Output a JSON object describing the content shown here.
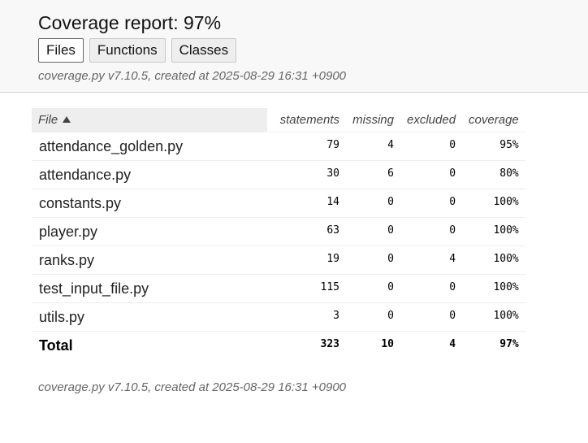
{
  "header": {
    "title": "Coverage report: 97%",
    "tabs": [
      {
        "label": "Files",
        "current": true
      },
      {
        "label": "Functions",
        "current": false
      },
      {
        "label": "Classes",
        "current": false
      }
    ],
    "meta": "coverage.py v7.10.5, created at 2025-08-29 16:31 +0900"
  },
  "table": {
    "columns": {
      "file": "File",
      "statements": "statements",
      "missing": "missing",
      "excluded": "excluded",
      "coverage": "coverage"
    },
    "rows": [
      {
        "file": "attendance_golden.py",
        "statements": "79",
        "missing": "4",
        "excluded": "0",
        "coverage": "95%"
      },
      {
        "file": "attendance.py",
        "statements": "30",
        "missing": "6",
        "excluded": "0",
        "coverage": "80%"
      },
      {
        "file": "constants.py",
        "statements": "14",
        "missing": "0",
        "excluded": "0",
        "coverage": "100%"
      },
      {
        "file": "player.py",
        "statements": "63",
        "missing": "0",
        "excluded": "0",
        "coverage": "100%"
      },
      {
        "file": "ranks.py",
        "statements": "19",
        "missing": "0",
        "excluded": "4",
        "coverage": "100%"
      },
      {
        "file": "test_input_file.py",
        "statements": "115",
        "missing": "0",
        "excluded": "0",
        "coverage": "100%"
      },
      {
        "file": "utils.py",
        "statements": "3",
        "missing": "0",
        "excluded": "0",
        "coverage": "100%"
      }
    ],
    "total": {
      "file": "Total",
      "statements": "323",
      "missing": "10",
      "excluded": "4",
      "coverage": "97%"
    }
  },
  "footer": {
    "meta": "coverage.py v7.10.5, created at 2025-08-29 16:31 +0900"
  }
}
